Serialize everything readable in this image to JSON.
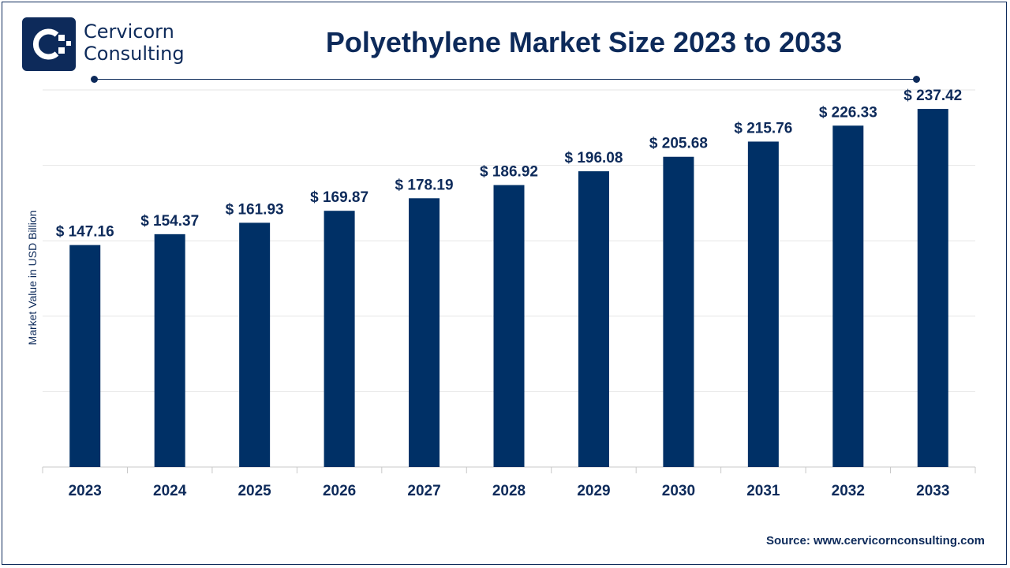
{
  "brand": {
    "name_line1": "Cervicorn",
    "name_line2": "Consulting"
  },
  "source": "Source: www.cervicornconsulting.com",
  "colors": {
    "bar": "#003066",
    "text": "#0d2a5a",
    "grid": "#e6e6e6"
  },
  "chart_data": {
    "type": "bar",
    "title": "Polyethylene Market Size 2023 to 2033",
    "ylabel": "Market Value in USD Billion",
    "xlabel": "",
    "categories": [
      "2023",
      "2024",
      "2025",
      "2026",
      "2027",
      "2028",
      "2029",
      "2030",
      "2031",
      "2032",
      "2033"
    ],
    "values": [
      147.16,
      154.37,
      161.93,
      169.87,
      178.19,
      186.92,
      196.08,
      205.68,
      215.76,
      226.33,
      237.42
    ],
    "value_labels": [
      "$ 147.16",
      "$ 154.37",
      "$ 161.93",
      "$ 169.87",
      "$ 178.19",
      "$ 186.92",
      "$ 196.08",
      "$ 205.68",
      "$ 215.76",
      "$ 226.33",
      "$ 237.42"
    ],
    "ylim": [
      0,
      250
    ],
    "grid": true,
    "legend": "none"
  }
}
